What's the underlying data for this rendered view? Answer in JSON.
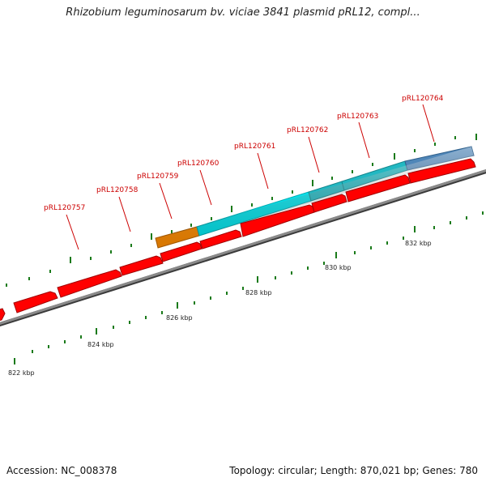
{
  "title": "Rhizobium leguminosarum bv. viciae 3841 plasmid pRL12, compl...",
  "footer": {
    "accession": "Accession: NC_008378",
    "summary": "Topology: circular; Length: 870,021 bp; Genes: 780"
  },
  "colors": {
    "forward_gene": "#ff0000",
    "gene_cyan": "#00e5ee",
    "gene_teal": "#22b8c2",
    "gene_orange": "#ff8c00",
    "gene_steelblue": "#4f86b8",
    "label_red": "#cc0000",
    "tick_green": "#1a7a1a",
    "backbone": "#808080"
  },
  "axis": {
    "unit": "kbp",
    "tick_labels": [
      "822 kbp",
      "824 kbp",
      "826 kbp",
      "828 kbp",
      "830 kbp",
      "832 kbp"
    ]
  },
  "gene_labels": [
    "pRL120757",
    "pRL120758",
    "pRL120759",
    "pRL120760",
    "pRL120761",
    "pRL120762",
    "pRL120763",
    "pRL120764"
  ]
}
